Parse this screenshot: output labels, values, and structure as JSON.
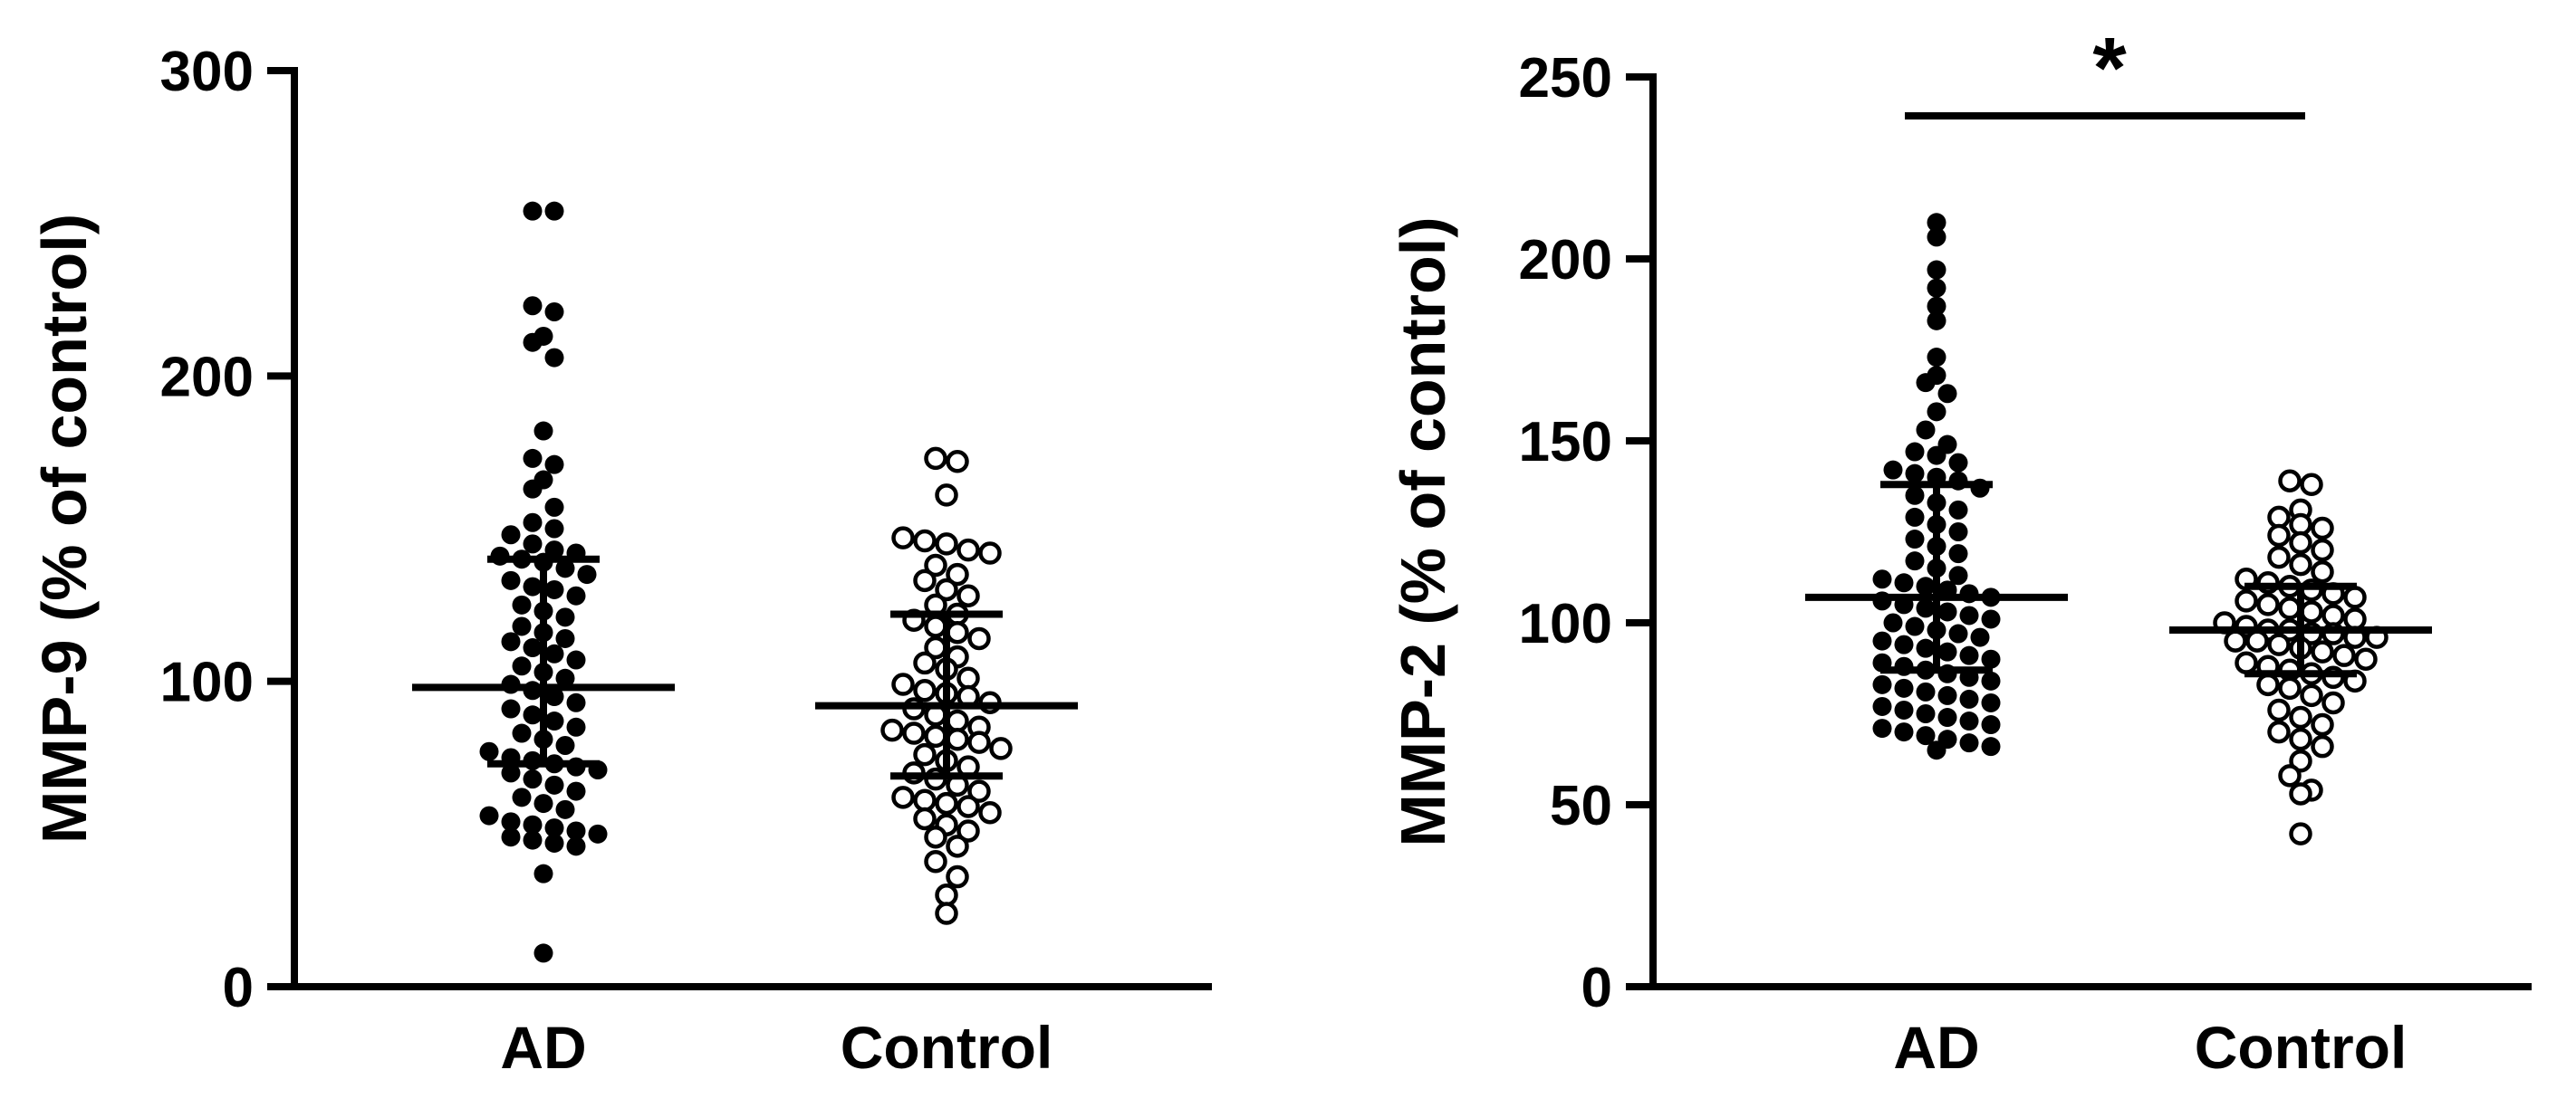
{
  "chart_data": [
    {
      "type": "scatter",
      "ylabel": "MMP-9 (% of control)",
      "ylim": [
        0,
        300
      ],
      "yticks": [
        0,
        100,
        200,
        300
      ],
      "categories": [
        "AD",
        "Control"
      ],
      "series": [
        {
          "name": "AD",
          "marker": "filled",
          "values": [
            254,
            254,
            223,
            221,
            213,
            211,
            206,
            182,
            173,
            171,
            166,
            163,
            157,
            152,
            150,
            148,
            145,
            143,
            142,
            141,
            140,
            139,
            137,
            135,
            133,
            131,
            130,
            128,
            125,
            123,
            121,
            118,
            116,
            114,
            113,
            111,
            109,
            107,
            105,
            103,
            101,
            99,
            97,
            95,
            93,
            91,
            89,
            87,
            85,
            83,
            81,
            79,
            77,
            75,
            74,
            73,
            72,
            71,
            70,
            68,
            66,
            64,
            62,
            60,
            58,
            56,
            54,
            53,
            52,
            51,
            50,
            49,
            48,
            47,
            46,
            37,
            11
          ],
          "mean": 98,
          "sd_upper": 140,
          "sd_lower": 73
        },
        {
          "name": "Control",
          "marker": "open",
          "values": [
            173,
            172,
            161,
            147,
            146,
            145,
            143,
            142,
            138,
            135,
            133,
            130,
            128,
            125,
            122,
            120,
            118,
            116,
            114,
            111,
            108,
            106,
            104,
            101,
            99,
            97,
            96,
            95,
            93,
            91,
            89,
            87,
            85,
            84,
            83,
            82,
            81,
            80,
            78,
            76,
            74,
            72,
            70,
            68,
            66,
            64,
            62,
            61,
            60,
            59,
            57,
            55,
            53,
            51,
            49,
            46,
            41,
            36,
            30,
            24
          ],
          "mean": 92,
          "sd_upper": 122,
          "sd_lower": 69
        }
      ]
    },
    {
      "type": "scatter",
      "ylabel": "MMP-2 (% of control)",
      "ylim": [
        0,
        250
      ],
      "yticks": [
        0,
        50,
        100,
        150,
        200,
        250
      ],
      "categories": [
        "AD",
        "Control"
      ],
      "significance": {
        "between": [
          "AD",
          "Control"
        ],
        "label": "*"
      },
      "series": [
        {
          "name": "AD",
          "marker": "filled",
          "values": [
            210,
            206,
            197,
            192,
            187,
            183,
            173,
            168,
            166,
            163,
            158,
            153,
            149,
            147,
            146,
            144,
            142,
            141,
            140,
            139,
            137,
            135,
            133,
            131,
            129,
            127,
            125,
            123,
            121,
            119,
            117,
            115,
            113,
            112,
            111,
            110,
            109,
            108,
            107,
            106,
            105,
            104,
            103,
            102,
            101,
            100,
            99,
            98,
            97,
            96,
            95,
            94,
            93,
            92,
            91,
            90,
            89,
            88,
            87,
            86,
            85,
            84,
            83,
            82,
            81,
            80,
            79,
            78,
            77,
            76,
            75,
            74,
            73,
            72,
            71,
            70,
            69,
            68,
            67,
            66,
            65
          ],
          "mean": 107,
          "sd_upper": 138,
          "sd_lower": 87
        },
        {
          "name": "Control",
          "marker": "open",
          "values": [
            139,
            138,
            131,
            129,
            127,
            126,
            124,
            122,
            120,
            118,
            116,
            114,
            112,
            111,
            110,
            109,
            108,
            107,
            106,
            105,
            104,
            103,
            102,
            101,
            100,
            99,
            98,
            98,
            97,
            97,
            96,
            96,
            95,
            95,
            94,
            93,
            92,
            91,
            90,
            89,
            88,
            87,
            86,
            85,
            84,
            83,
            82,
            80,
            78,
            76,
            74,
            72,
            70,
            68,
            66,
            62,
            58,
            54,
            53,
            42
          ],
          "mean": 98,
          "sd_upper": 110,
          "sd_lower": 86
        }
      ]
    }
  ]
}
